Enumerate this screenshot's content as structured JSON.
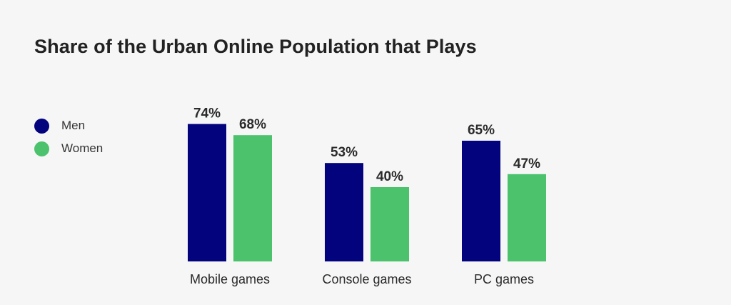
{
  "title": "Share of the Urban Online Population that Plays",
  "colors": {
    "men": "#03037e",
    "women": "#4cc26c"
  },
  "chart_data": {
    "type": "bar",
    "title": "Share of the Urban Online Population that Plays",
    "categories": [
      "Mobile games",
      "Console games",
      "PC games"
    ],
    "series": [
      {
        "name": "Men",
        "values": [
          74,
          53,
          65
        ],
        "labels": [
          "74%",
          "53%",
          "65%"
        ]
      },
      {
        "name": "Women",
        "values": [
          68,
          40,
          47
        ],
        "labels": [
          "68%",
          "40%",
          "47%"
        ]
      }
    ],
    "legend_position": "left",
    "grid": false,
    "ylim": [
      0,
      100
    ]
  }
}
